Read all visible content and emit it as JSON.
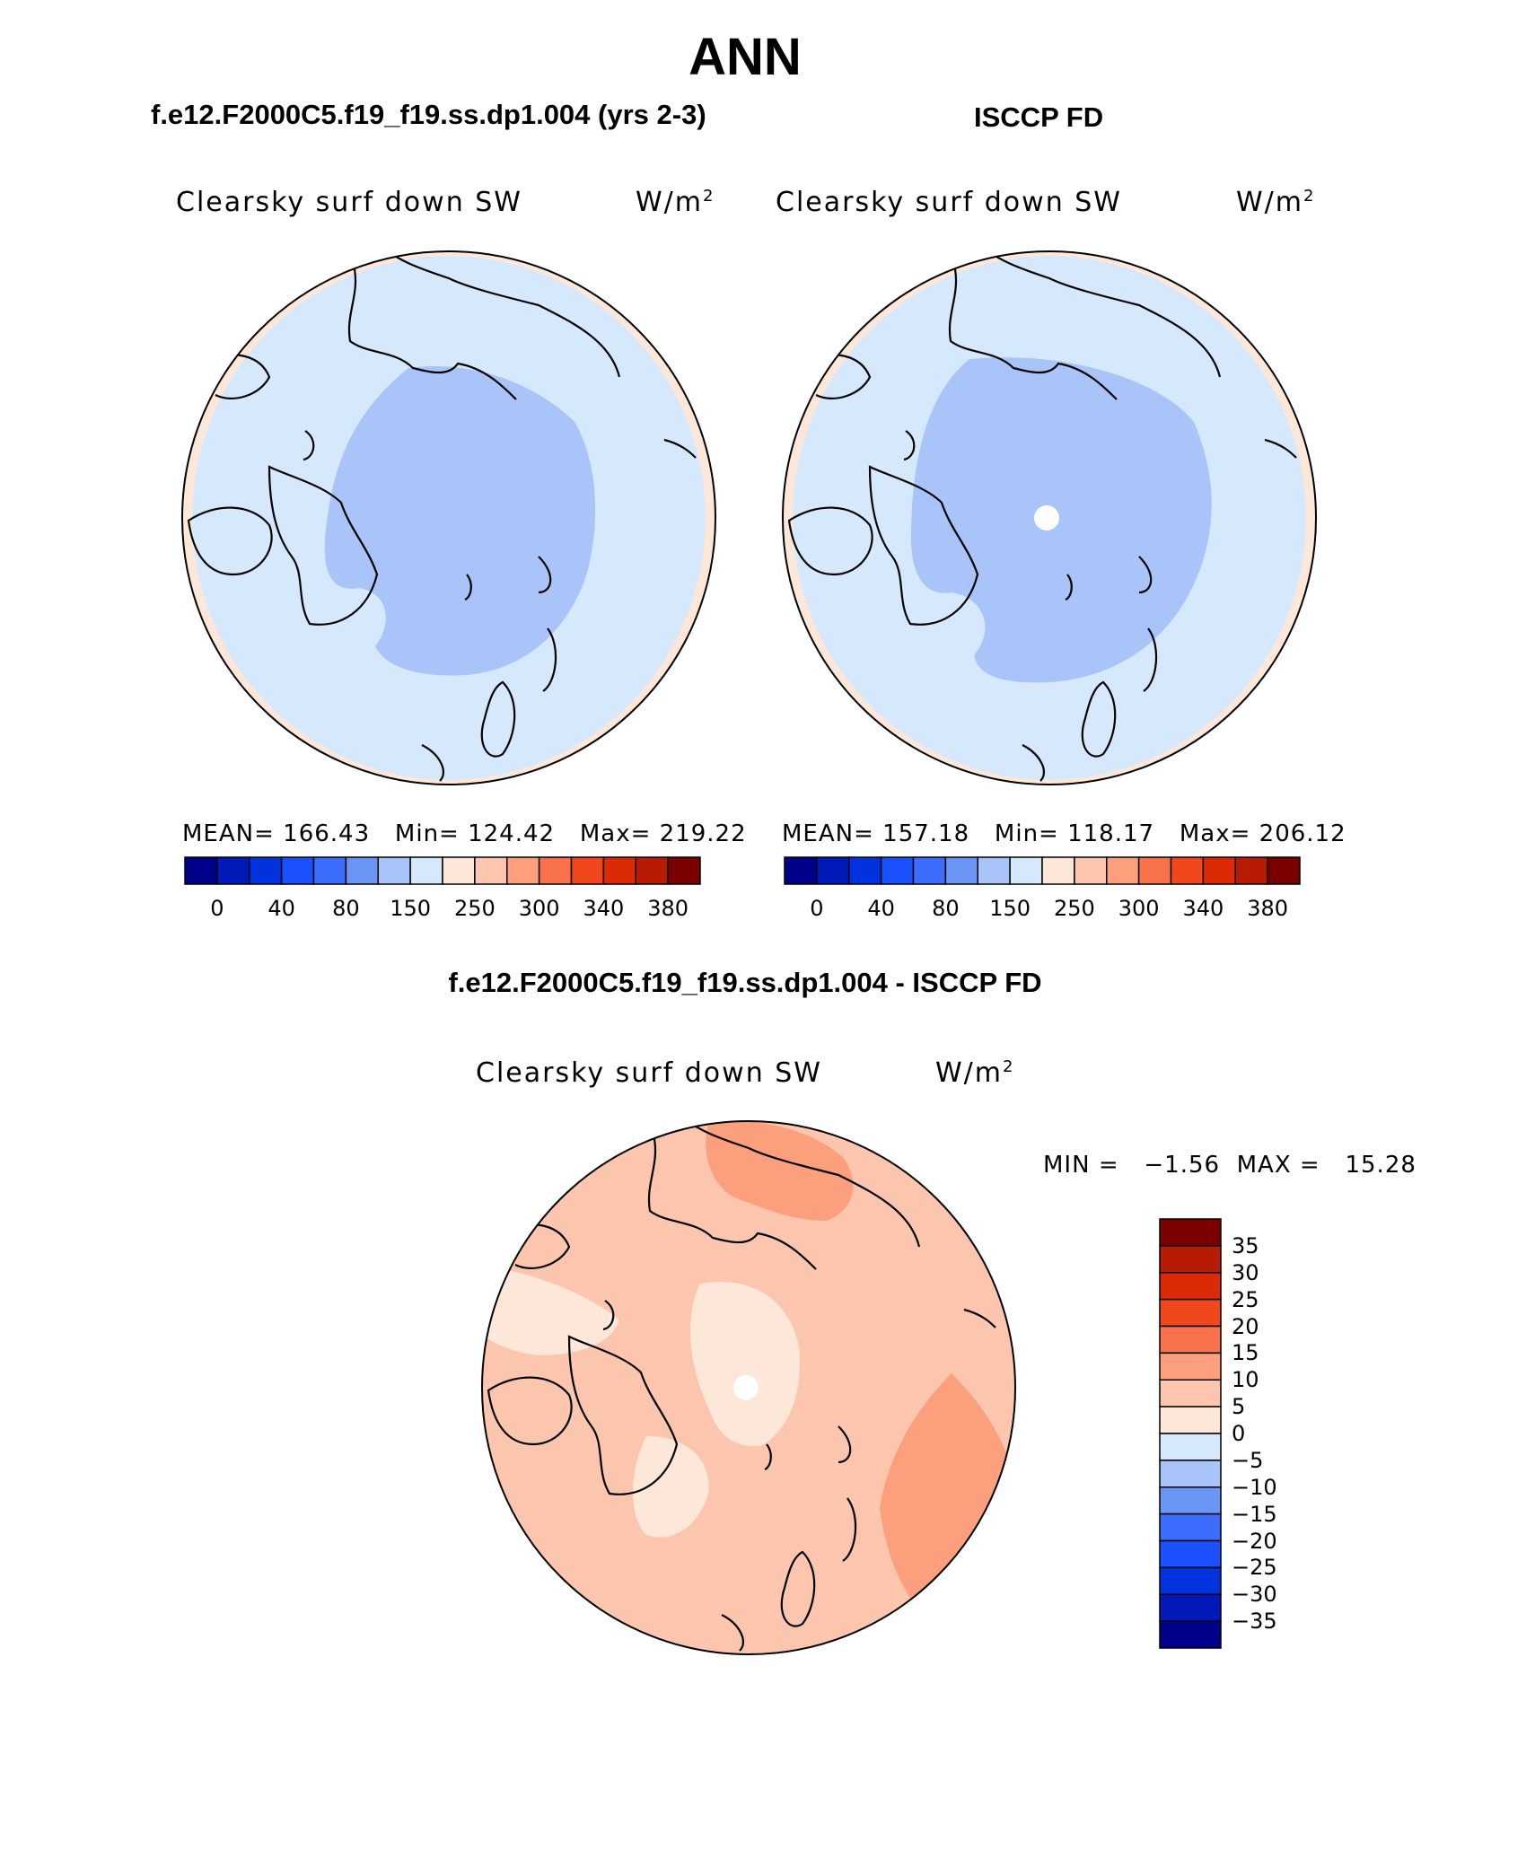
{
  "title": "ANN",
  "panels": [
    {
      "header": "f.e12.F2000C5.f19_f19.ss.dp1.004 (yrs 2-3)",
      "variable": "Clearsky surf down SW",
      "units": "W/m",
      "units_sup": "2",
      "stats_text": "MEAN= 166.43   Min= 124.42   Max= 219.22",
      "stats": {
        "mean": 166.43,
        "min": 124.42,
        "max": 219.22
      },
      "inner_fill": 0.78
    },
    {
      "header": "ISCCP FD",
      "variable": "Clearsky surf down SW",
      "units": "W/m",
      "units_sup": "2",
      "stats_text": "MEAN= 157.18   Min= 118.17   Max= 206.12",
      "stats": {
        "mean": 157.18,
        "min": 118.17,
        "max": 206.12
      },
      "inner_fill": 0.78
    }
  ],
  "colorbar": {
    "colors": [
      "#00008b",
      "#0019b7",
      "#0033dd",
      "#1a50ff",
      "#3d6dff",
      "#6b95f4",
      "#a8c4f8",
      "#d6e8fc",
      "#fde7d8",
      "#fcc6ae",
      "#fb9f7c",
      "#f8734b",
      "#f0471d",
      "#dc2a06",
      "#b81b04",
      "#7a0000"
    ],
    "labels": [
      "0",
      "40",
      "80",
      "150",
      "250",
      "300",
      "340",
      "380"
    ]
  },
  "difference": {
    "header": "f.e12.F2000C5.f19_f19.ss.dp1.004 - ISCCP FD",
    "variable": "Clearsky surf down SW",
    "units": "W/m",
    "units_sup": "2",
    "minmax_text": "MIN =   −1.56  MAX =   15.28",
    "min": -1.56,
    "max": 15.28,
    "colorbar": {
      "colors": [
        "#7a0000",
        "#b81b04",
        "#dc2a06",
        "#f0471d",
        "#f8734b",
        "#fb9f7c",
        "#fcc6ae",
        "#fde7d8",
        "#d6e8fc",
        "#a8c4f8",
        "#6b95f4",
        "#3d6dff",
        "#1a50ff",
        "#0033dd",
        "#0019b7",
        "#00008b"
      ],
      "labels": [
        "35",
        "30",
        "25",
        "20",
        "15",
        "10",
        "5",
        "0",
        "−5",
        "−10",
        "−15",
        "−20",
        "−25",
        "−30",
        "−35"
      ]
    }
  }
}
